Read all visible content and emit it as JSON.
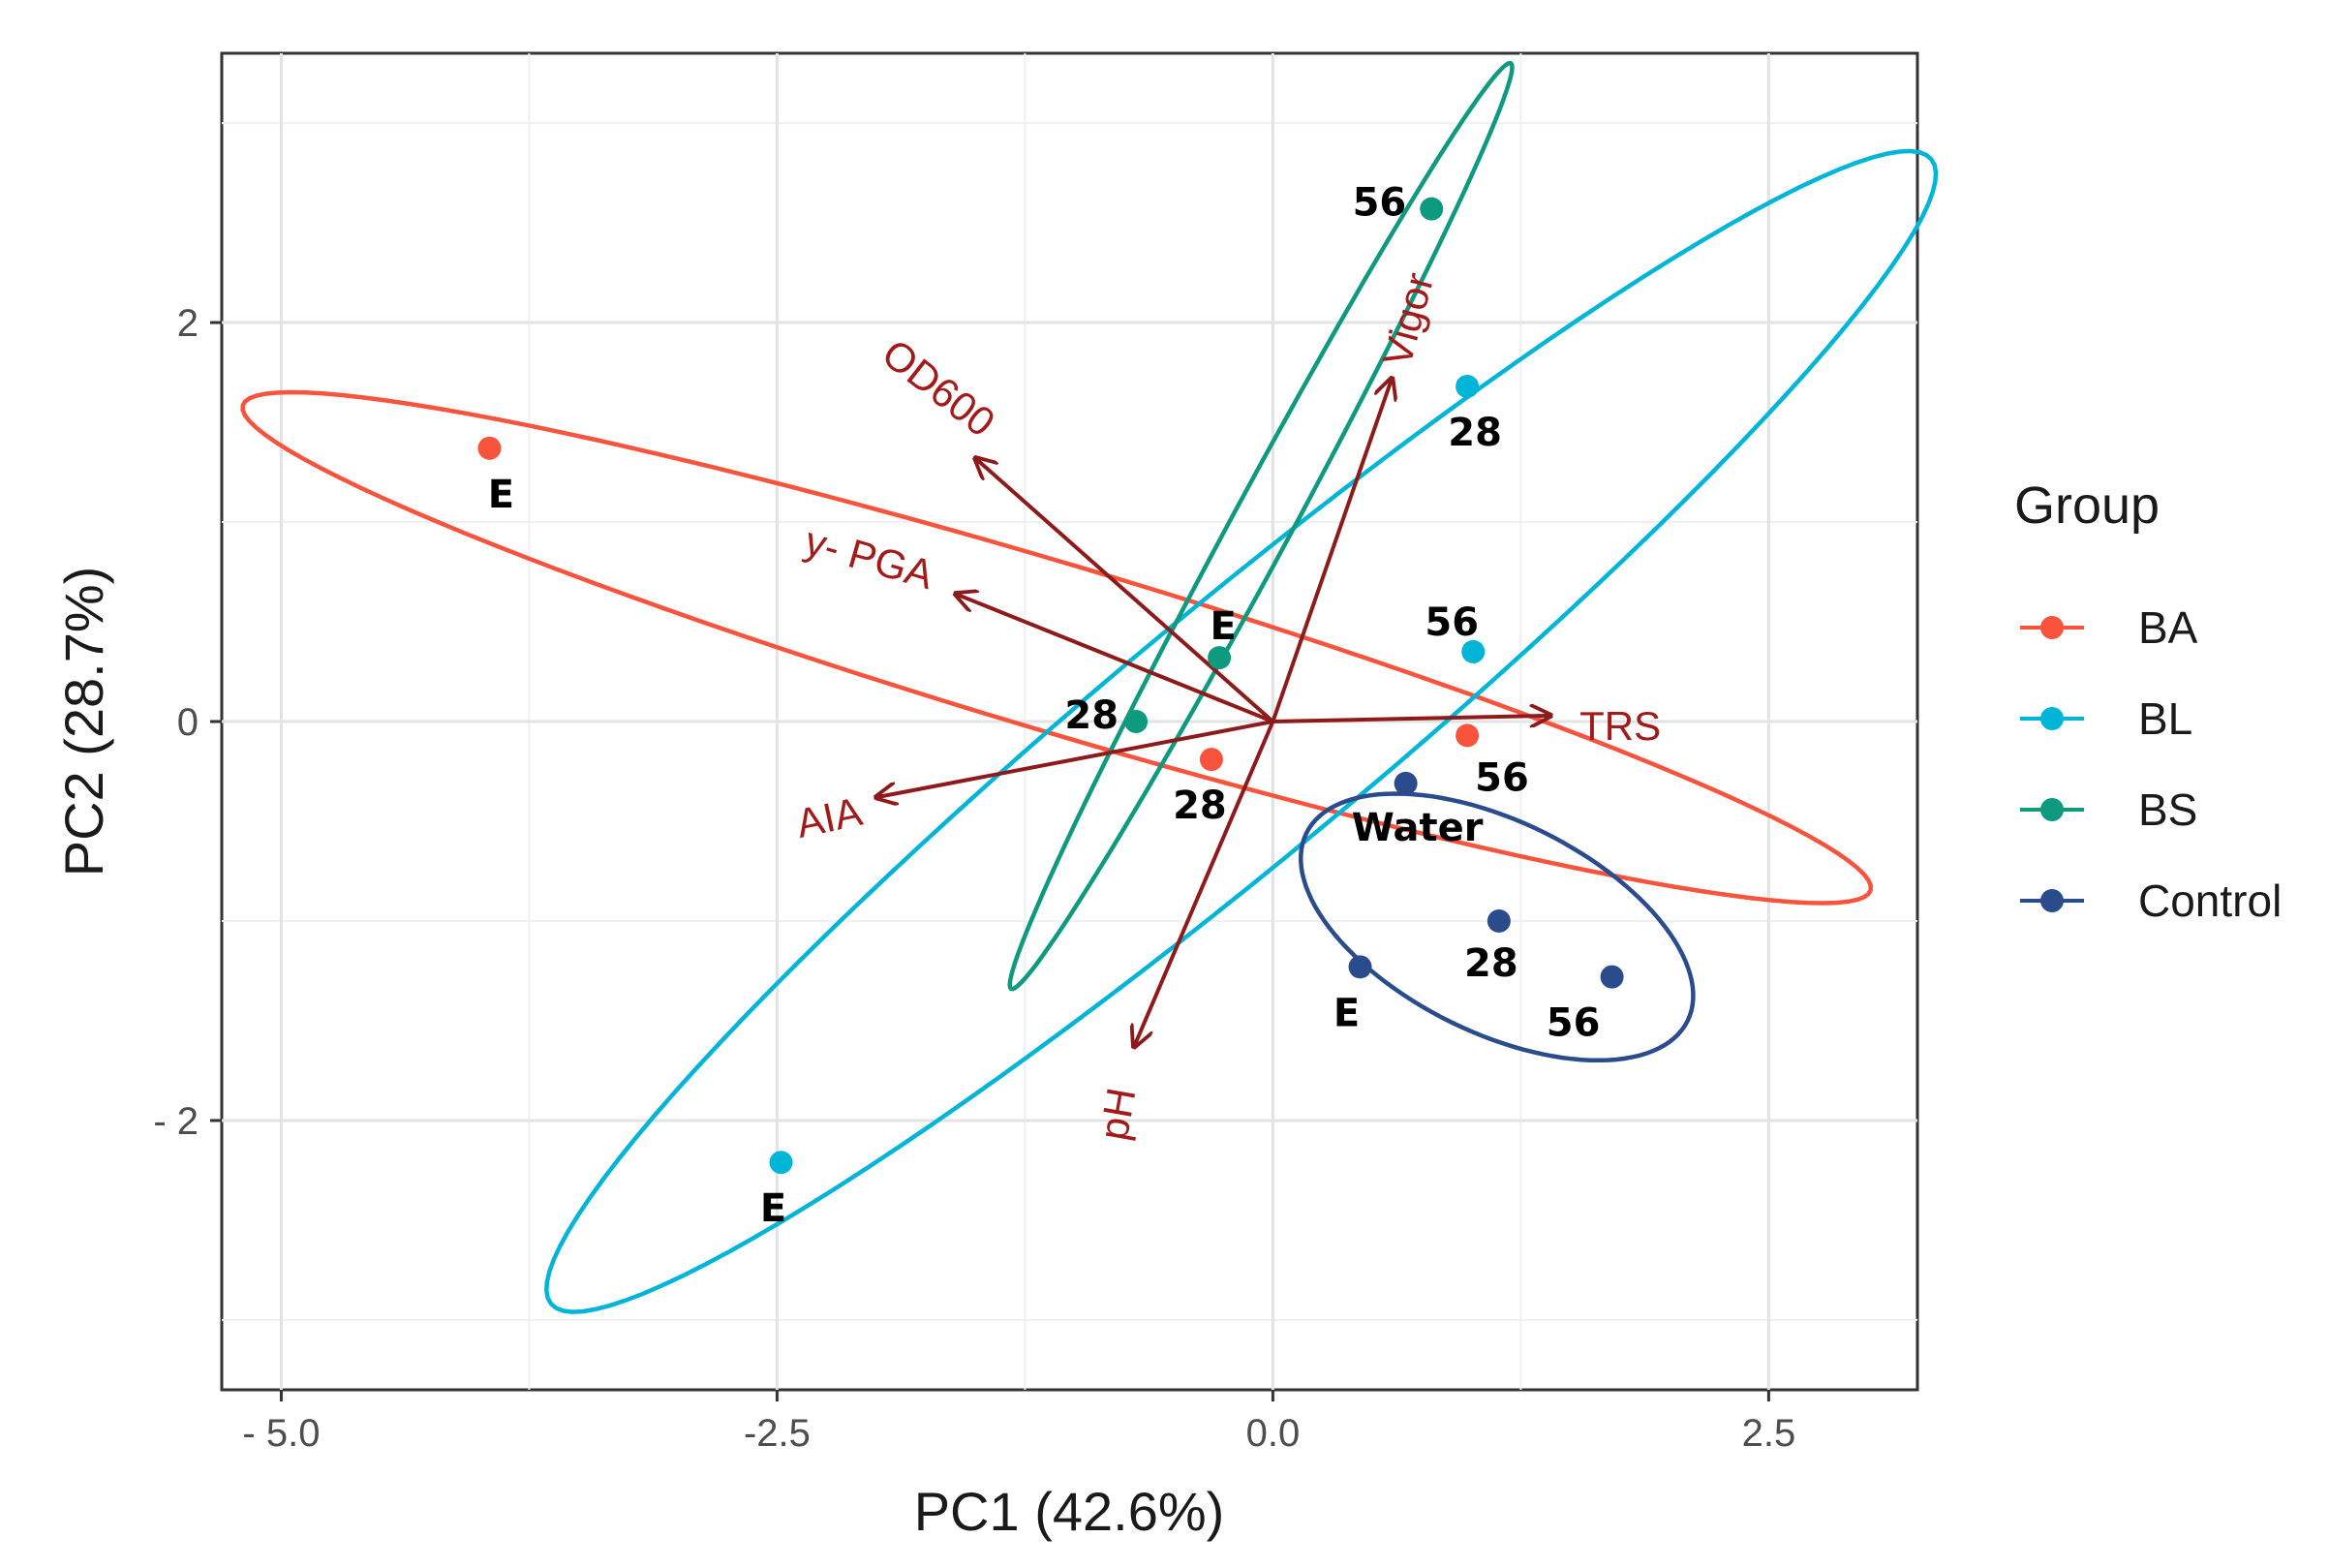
{
  "chart_data": {
    "type": "scatter",
    "title": "",
    "xlabel": "PC1 (42.6%)",
    "ylabel": "PC2 (28.7%)",
    "xlim": [
      -5.3,
      3.25
    ],
    "ylim": [
      -3.35,
      3.35
    ],
    "x_ticks": [
      -5.0,
      -2.5,
      0.0,
      2.5
    ],
    "x_tick_labels": [
      "- 5.0",
      "-2.5",
      "0.0",
      "2.5"
    ],
    "y_ticks": [
      -2,
      0,
      2
    ],
    "y_tick_labels": [
      "- 2",
      "0",
      "2"
    ],
    "grid": true,
    "legend": {
      "title": "Group",
      "position": "right",
      "entries": [
        {
          "name": "BA",
          "color": "#F8533D"
        },
        {
          "name": "BL",
          "color": "#00B5D8"
        },
        {
          "name": "BS",
          "color": "#0E9A7E"
        },
        {
          "name": "Control",
          "color": "#2B4C8C"
        }
      ]
    },
    "series": [
      {
        "name": "BA",
        "color": "#F8533D",
        "points": [
          {
            "x": -3.95,
            "y": 1.37,
            "label": "E"
          },
          {
            "x": -0.31,
            "y": -0.19,
            "label": "28"
          },
          {
            "x": 0.98,
            "y": -0.07,
            "label": "56"
          }
        ],
        "ellipse": {
          "cx": -1.09,
          "cy": 0.37,
          "rx": 4.28,
          "ry": 0.42,
          "angle_deg": -16.5
        }
      },
      {
        "name": "BL",
        "color": "#00B5D8",
        "points": [
          {
            "x": -2.48,
            "y": -2.21,
            "label": "E"
          },
          {
            "x": 0.98,
            "y": 1.68,
            "label": "28"
          },
          {
            "x": 1.01,
            "y": 0.35,
            "label": "56"
          }
        ],
        "ellipse": {
          "cx": -0.16,
          "cy": -0.05,
          "rx": 4.51,
          "ry": 0.63,
          "angle_deg": 39.5
        }
      },
      {
        "name": "BS",
        "color": "#0E9A7E",
        "points": [
          {
            "x": -0.27,
            "y": 0.32,
            "label": "E"
          },
          {
            "x": -0.69,
            "y": 0.0,
            "label": "28"
          },
          {
            "x": 0.8,
            "y": 2.57,
            "label": "56"
          }
        ],
        "ellipse": {
          "cx": -0.06,
          "cy": 0.98,
          "rx": 2.64,
          "ry": 0.15,
          "angle_deg": 61.5
        }
      },
      {
        "name": "Control",
        "color": "#2B4C8C",
        "points": [
          {
            "x": 0.44,
            "y": -1.23,
            "label": "E"
          },
          {
            "x": 0.67,
            "y": -0.31,
            "label": "Water"
          },
          {
            "x": 1.14,
            "y": -1.0,
            "label": "28"
          },
          {
            "x": 1.71,
            "y": -1.28,
            "label": "56"
          }
        ],
        "ellipse": {
          "cx": 1.13,
          "cy": -1.03,
          "rx": 1.07,
          "ry": 0.53,
          "angle_deg": -26
        }
      }
    ],
    "loadings": [
      {
        "label": "Vigor",
        "x": 0.6,
        "y": 1.72
      },
      {
        "label": "OD600",
        "x": -1.5,
        "y": 1.32
      },
      {
        "label": "y- PGA",
        "x": -1.6,
        "y": 0.64
      },
      {
        "label": "TRS",
        "x": 1.4,
        "y": 0.03
      },
      {
        "label": "AIA",
        "x": -2.0,
        "y": -0.38
      },
      {
        "label": "pH",
        "x": -0.7,
        "y": -1.63
      }
    ],
    "loading_color": "#8E1B1B"
  }
}
